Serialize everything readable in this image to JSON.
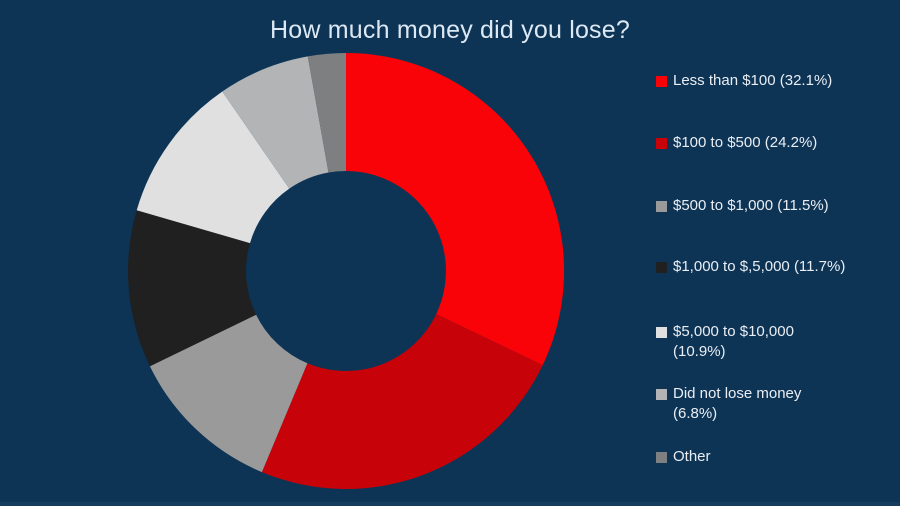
{
  "background_color": "#0e3455",
  "title_color": "#dce9f4",
  "legend_text_color": "#e9eef4",
  "chart_data": {
    "type": "pie",
    "subtype": "donut",
    "title": "How much money did you lose?",
    "legend_position": "right",
    "start_angle_deg": 0,
    "direction": "clockwise",
    "donut_hole_ratio": 0.46,
    "grid": false,
    "series": [
      {
        "name": "Less than $100",
        "value": 32.1,
        "color": "#fa0308",
        "legend_label": "Less than $100 (32.1%)"
      },
      {
        "name": "$100 to $500",
        "value": 24.2,
        "color": "#c70309",
        "legend_label": "$100 to $500 (24.2%)"
      },
      {
        "name": "$500 to $1,000",
        "value": 11.5,
        "color": "#9a9a9a",
        "legend_label": "$500 to $1,000 (11.5%)"
      },
      {
        "name": "$1,000 to $,5,000",
        "value": 11.7,
        "color": "#202021",
        "legend_label": "$1,000 to $,5,000 (11.7%)"
      },
      {
        "name": "$5,000 to $10,000",
        "value": 10.9,
        "color": "#e0e0e0",
        "legend_label": "$5,000 to $10,000\n(10.9%)"
      },
      {
        "name": "Did not lose money",
        "value": 6.8,
        "color": "#b2b4b6",
        "legend_label": "Did not lose money\n(6.8%)"
      },
      {
        "name": "Other",
        "value": 2.8,
        "color": "#7e7f80",
        "legend_label": "Other"
      }
    ]
  }
}
